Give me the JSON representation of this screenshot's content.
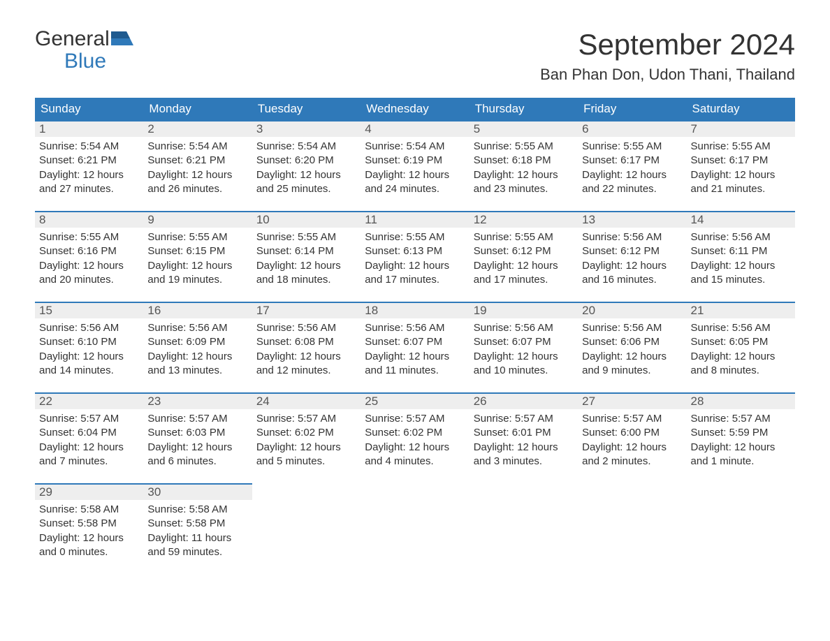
{
  "logo": {
    "top": "General",
    "bottom": "Blue"
  },
  "title": "September 2024",
  "location": "Ban Phan Don, Udon Thani, Thailand",
  "day_headers": [
    "Sunday",
    "Monday",
    "Tuesday",
    "Wednesday",
    "Thursday",
    "Friday",
    "Saturday"
  ],
  "colors": {
    "header_bg": "#2f79b9",
    "header_text": "#ffffff",
    "daynum_bg": "#eeeeee",
    "border_top": "#2f79b9",
    "text": "#333333",
    "logo_accent": "#2f79b9"
  },
  "weeks": [
    [
      {
        "n": "1",
        "sunrise": "Sunrise: 5:54 AM",
        "sunset": "Sunset: 6:21 PM",
        "daylight": "Daylight: 12 hours and 27 minutes."
      },
      {
        "n": "2",
        "sunrise": "Sunrise: 5:54 AM",
        "sunset": "Sunset: 6:21 PM",
        "daylight": "Daylight: 12 hours and 26 minutes."
      },
      {
        "n": "3",
        "sunrise": "Sunrise: 5:54 AM",
        "sunset": "Sunset: 6:20 PM",
        "daylight": "Daylight: 12 hours and 25 minutes."
      },
      {
        "n": "4",
        "sunrise": "Sunrise: 5:54 AM",
        "sunset": "Sunset: 6:19 PM",
        "daylight": "Daylight: 12 hours and 24 minutes."
      },
      {
        "n": "5",
        "sunrise": "Sunrise: 5:55 AM",
        "sunset": "Sunset: 6:18 PM",
        "daylight": "Daylight: 12 hours and 23 minutes."
      },
      {
        "n": "6",
        "sunrise": "Sunrise: 5:55 AM",
        "sunset": "Sunset: 6:17 PM",
        "daylight": "Daylight: 12 hours and 22 minutes."
      },
      {
        "n": "7",
        "sunrise": "Sunrise: 5:55 AM",
        "sunset": "Sunset: 6:17 PM",
        "daylight": "Daylight: 12 hours and 21 minutes."
      }
    ],
    [
      {
        "n": "8",
        "sunrise": "Sunrise: 5:55 AM",
        "sunset": "Sunset: 6:16 PM",
        "daylight": "Daylight: 12 hours and 20 minutes."
      },
      {
        "n": "9",
        "sunrise": "Sunrise: 5:55 AM",
        "sunset": "Sunset: 6:15 PM",
        "daylight": "Daylight: 12 hours and 19 minutes."
      },
      {
        "n": "10",
        "sunrise": "Sunrise: 5:55 AM",
        "sunset": "Sunset: 6:14 PM",
        "daylight": "Daylight: 12 hours and 18 minutes."
      },
      {
        "n": "11",
        "sunrise": "Sunrise: 5:55 AM",
        "sunset": "Sunset: 6:13 PM",
        "daylight": "Daylight: 12 hours and 17 minutes."
      },
      {
        "n": "12",
        "sunrise": "Sunrise: 5:55 AM",
        "sunset": "Sunset: 6:12 PM",
        "daylight": "Daylight: 12 hours and 17 minutes."
      },
      {
        "n": "13",
        "sunrise": "Sunrise: 5:56 AM",
        "sunset": "Sunset: 6:12 PM",
        "daylight": "Daylight: 12 hours and 16 minutes."
      },
      {
        "n": "14",
        "sunrise": "Sunrise: 5:56 AM",
        "sunset": "Sunset: 6:11 PM",
        "daylight": "Daylight: 12 hours and 15 minutes."
      }
    ],
    [
      {
        "n": "15",
        "sunrise": "Sunrise: 5:56 AM",
        "sunset": "Sunset: 6:10 PM",
        "daylight": "Daylight: 12 hours and 14 minutes."
      },
      {
        "n": "16",
        "sunrise": "Sunrise: 5:56 AM",
        "sunset": "Sunset: 6:09 PM",
        "daylight": "Daylight: 12 hours and 13 minutes."
      },
      {
        "n": "17",
        "sunrise": "Sunrise: 5:56 AM",
        "sunset": "Sunset: 6:08 PM",
        "daylight": "Daylight: 12 hours and 12 minutes."
      },
      {
        "n": "18",
        "sunrise": "Sunrise: 5:56 AM",
        "sunset": "Sunset: 6:07 PM",
        "daylight": "Daylight: 12 hours and 11 minutes."
      },
      {
        "n": "19",
        "sunrise": "Sunrise: 5:56 AM",
        "sunset": "Sunset: 6:07 PM",
        "daylight": "Daylight: 12 hours and 10 minutes."
      },
      {
        "n": "20",
        "sunrise": "Sunrise: 5:56 AM",
        "sunset": "Sunset: 6:06 PM",
        "daylight": "Daylight: 12 hours and 9 minutes."
      },
      {
        "n": "21",
        "sunrise": "Sunrise: 5:56 AM",
        "sunset": "Sunset: 6:05 PM",
        "daylight": "Daylight: 12 hours and 8 minutes."
      }
    ],
    [
      {
        "n": "22",
        "sunrise": "Sunrise: 5:57 AM",
        "sunset": "Sunset: 6:04 PM",
        "daylight": "Daylight: 12 hours and 7 minutes."
      },
      {
        "n": "23",
        "sunrise": "Sunrise: 5:57 AM",
        "sunset": "Sunset: 6:03 PM",
        "daylight": "Daylight: 12 hours and 6 minutes."
      },
      {
        "n": "24",
        "sunrise": "Sunrise: 5:57 AM",
        "sunset": "Sunset: 6:02 PM",
        "daylight": "Daylight: 12 hours and 5 minutes."
      },
      {
        "n": "25",
        "sunrise": "Sunrise: 5:57 AM",
        "sunset": "Sunset: 6:02 PM",
        "daylight": "Daylight: 12 hours and 4 minutes."
      },
      {
        "n": "26",
        "sunrise": "Sunrise: 5:57 AM",
        "sunset": "Sunset: 6:01 PM",
        "daylight": "Daylight: 12 hours and 3 minutes."
      },
      {
        "n": "27",
        "sunrise": "Sunrise: 5:57 AM",
        "sunset": "Sunset: 6:00 PM",
        "daylight": "Daylight: 12 hours and 2 minutes."
      },
      {
        "n": "28",
        "sunrise": "Sunrise: 5:57 AM",
        "sunset": "Sunset: 5:59 PM",
        "daylight": "Daylight: 12 hours and 1 minute."
      }
    ],
    [
      {
        "n": "29",
        "sunrise": "Sunrise: 5:58 AM",
        "sunset": "Sunset: 5:58 PM",
        "daylight": "Daylight: 12 hours and 0 minutes."
      },
      {
        "n": "30",
        "sunrise": "Sunrise: 5:58 AM",
        "sunset": "Sunset: 5:58 PM",
        "daylight": "Daylight: 11 hours and 59 minutes."
      },
      null,
      null,
      null,
      null,
      null
    ]
  ]
}
